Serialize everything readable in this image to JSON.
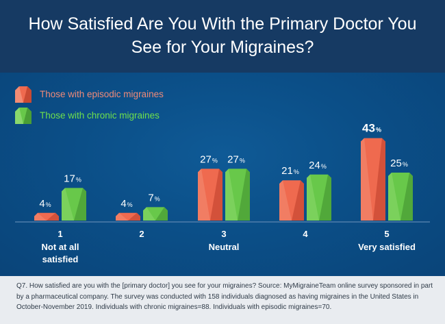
{
  "title": "How Satisfied Are You With the Primary Doctor You See for Your Migraines?",
  "colors": {
    "episodic": "#ef6a4f",
    "episodic_dark": "#c94a33",
    "chronic": "#68c84a",
    "chronic_dark": "#4a9e35",
    "title_band": "#163a63",
    "background": "#0b4f88"
  },
  "legend": [
    {
      "label": "Those with episodic migraines",
      "color": "#f08a78",
      "icon": "episodic-swatch-icon"
    },
    {
      "label": "Those with chronic migraines",
      "color": "#6fe04c",
      "icon": "chronic-swatch-icon"
    }
  ],
  "chart_data": {
    "type": "bar",
    "title": "How Satisfied Are You With the Primary Doctor You See for Your Migraines?",
    "categories": [
      "1",
      "2",
      "3",
      "4",
      "5"
    ],
    "category_labels": [
      "Not at all satisfied",
      "",
      "Neutral",
      "",
      "Very satisfied"
    ],
    "unit": "%",
    "series": [
      {
        "name": "Those with episodic migraines",
        "values": [
          4,
          4,
          27,
          21,
          43
        ]
      },
      {
        "name": "Those with chronic migraines",
        "values": [
          17,
          7,
          27,
          24,
          25
        ]
      }
    ],
    "ylim": [
      0,
      45
    ],
    "grid": false,
    "legend_position": "top-left"
  },
  "source": "Q7. How satisfied are you with the [primary doctor] you see for your migraines? Source: MyMigraineTeam online survey sponsored in part by a pharmaceutical company. The survey was conducted with 158 individuals diagnosed as having migraines in the United States in October-November 2019. Individuals with chronic migraines=88. Individuals with episodic migraines=70."
}
